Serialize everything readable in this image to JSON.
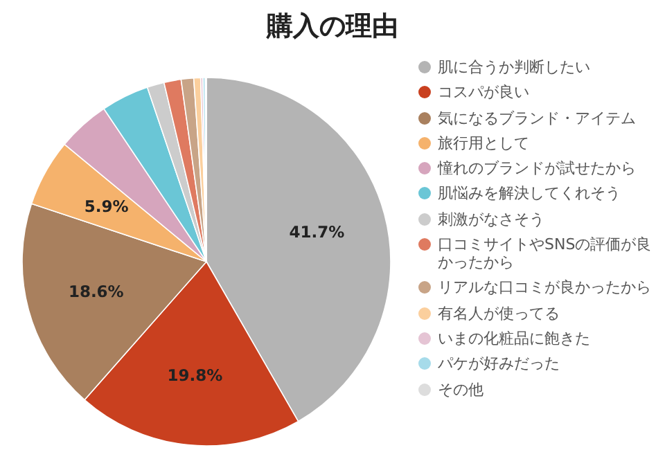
{
  "chart_data": {
    "type": "pie",
    "title": "購入の理由",
    "categories": [
      "肌に合うか判断したい",
      "コスパが良い",
      "気になるブランド・アイテム",
      "旅行用として",
      "憧れのブランドが試せたから",
      "肌悩みを解決してくれそう",
      "刺激がなさそう",
      "口コミサイトやSNSの評価が良かったから",
      "リアルな口コミが良かったから",
      "有名人が使ってる",
      "いまの化粧品に飽きた",
      "パケが好みだった",
      "その他"
    ],
    "values": [
      41.7,
      19.8,
      18.6,
      5.9,
      4.6,
      4.2,
      1.5,
      1.5,
      1.1,
      0.6,
      0.2,
      0.2,
      0.1
    ],
    "value_labels": [
      "41.7%",
      "19.8%",
      "18.6%",
      "5.9%",
      null,
      null,
      null,
      null,
      null,
      null,
      null,
      null,
      null
    ],
    "colors": [
      "#b4b4b4",
      "#c9401f",
      "#a9805e",
      "#f5b26c",
      "#d6a5bd",
      "#6ac6d6",
      "#cccccc",
      "#df7a60",
      "#c8a487",
      "#fbcf9d",
      "#e5c4d4",
      "#a6dbea",
      "#dddddd"
    ],
    "legend": "right"
  }
}
